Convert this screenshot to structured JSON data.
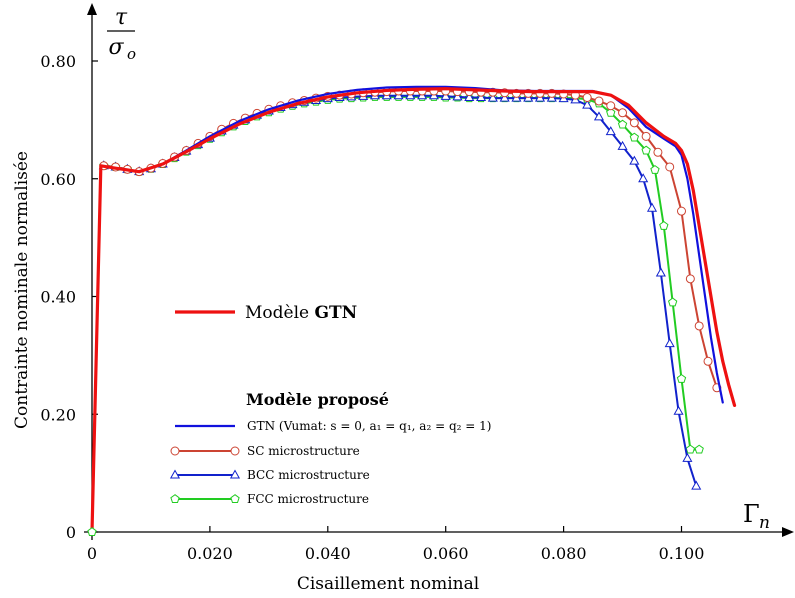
{
  "chart_data": {
    "type": "line",
    "xlabel": "Cisaillement nominal",
    "ylabel": "Contrainte nominale normalisée",
    "x_axis_symbol": "Γ",
    "x_axis_symbol_sub": "n",
    "y_axis_symbol_num": "τ",
    "y_axis_symbol_den": "σ",
    "y_axis_symbol_den_sub": "o",
    "xlim": [
      0,
      0.11
    ],
    "ylim": [
      0,
      0.88
    ],
    "xticks": [
      0,
      0.02,
      0.04,
      0.06,
      0.08,
      0.1
    ],
    "xtick_labels": [
      "0",
      "0.020",
      "0.040",
      "0.060",
      "0.080",
      "0.100"
    ],
    "yticks": [
      0,
      0.2,
      0.4,
      0.6,
      0.8
    ],
    "ytick_labels": [
      "0",
      "0.20",
      "0.40",
      "0.60",
      "0.80"
    ],
    "legend_gtn_prefix": "Modèle ",
    "legend_gtn_bold": "GTN",
    "legend_group_title": "Modèle proposé",
    "legend_vumat_label": "GTN (Vumat: s = 0,  a₁ = q₁,  a₂ = q₂ = 1)",
    "series": [
      {
        "name": "Modèle GTN",
        "color": "#ee1111",
        "width": 3.2,
        "marker": "none",
        "x": [
          0,
          0.0015,
          0.004,
          0.008,
          0.012,
          0.016,
          0.02,
          0.025,
          0.03,
          0.035,
          0.04,
          0.045,
          0.05,
          0.055,
          0.06,
          0.065,
          0.07,
          0.075,
          0.08,
          0.085,
          0.088,
          0.091,
          0.094,
          0.097,
          0.099,
          0.1,
          0.101,
          0.102,
          0.103,
          0.104,
          0.105,
          0.106,
          0.107,
          0.108,
          0.109
        ],
        "y": [
          0,
          0.622,
          0.618,
          0.612,
          0.625,
          0.646,
          0.668,
          0.693,
          0.713,
          0.728,
          0.739,
          0.746,
          0.75,
          0.752,
          0.753,
          0.751,
          0.749,
          0.748,
          0.748,
          0.748,
          0.742,
          0.725,
          0.695,
          0.672,
          0.66,
          0.648,
          0.625,
          0.58,
          0.52,
          0.46,
          0.4,
          0.34,
          0.29,
          0.25,
          0.215
        ]
      },
      {
        "name": "GTN (Vumat)",
        "color": "#1111dd",
        "width": 2.2,
        "marker": "none",
        "x": [
          0,
          0.0015,
          0.004,
          0.008,
          0.012,
          0.016,
          0.02,
          0.025,
          0.03,
          0.035,
          0.04,
          0.045,
          0.05,
          0.055,
          0.06,
          0.065,
          0.07,
          0.075,
          0.08,
          0.085,
          0.088,
          0.091,
          0.094,
          0.097,
          0.099,
          0.1,
          0.101,
          0.102,
          0.103,
          0.104,
          0.105,
          0.106,
          0.107
        ],
        "y": [
          0,
          0.622,
          0.618,
          0.612,
          0.625,
          0.648,
          0.672,
          0.698,
          0.718,
          0.733,
          0.744,
          0.751,
          0.755,
          0.756,
          0.756,
          0.754,
          0.75,
          0.749,
          0.749,
          0.749,
          0.742,
          0.72,
          0.688,
          0.668,
          0.655,
          0.64,
          0.6,
          0.54,
          0.47,
          0.4,
          0.33,
          0.27,
          0.22
        ]
      },
      {
        "name": "SC microstructure",
        "color": "#cc4433",
        "width": 2,
        "marker": "circle",
        "x": [
          0,
          0.0015,
          0.002,
          0.004,
          0.006,
          0.008,
          0.01,
          0.012,
          0.014,
          0.016,
          0.018,
          0.02,
          0.022,
          0.024,
          0.026,
          0.028,
          0.03,
          0.032,
          0.034,
          0.036,
          0.038,
          0.04,
          0.042,
          0.044,
          0.046,
          0.048,
          0.05,
          0.052,
          0.054,
          0.056,
          0.058,
          0.06,
          0.062,
          0.064,
          0.066,
          0.068,
          0.07,
          0.072,
          0.074,
          0.076,
          0.078,
          0.08,
          0.082,
          0.084,
          0.086,
          0.088,
          0.09,
          0.092,
          0.094,
          0.096,
          0.098,
          0.1,
          0.1015,
          0.103,
          0.1045,
          0.106
        ],
        "y": [
          0,
          0.622,
          0.622,
          0.62,
          0.616,
          0.612,
          0.618,
          0.626,
          0.637,
          0.648,
          0.66,
          0.672,
          0.684,
          0.694,
          0.703,
          0.711,
          0.718,
          0.724,
          0.729,
          0.733,
          0.737,
          0.74,
          0.742,
          0.744,
          0.746,
          0.747,
          0.748,
          0.749,
          0.749,
          0.749,
          0.749,
          0.749,
          0.748,
          0.748,
          0.747,
          0.747,
          0.746,
          0.745,
          0.745,
          0.745,
          0.745,
          0.744,
          0.742,
          0.738,
          0.732,
          0.724,
          0.712,
          0.695,
          0.672,
          0.645,
          0.62,
          0.545,
          0.43,
          0.35,
          0.29,
          0.245
        ]
      },
      {
        "name": "BCC microstructure",
        "color": "#1122cc",
        "width": 2,
        "marker": "triangle",
        "x": [
          0,
          0.0015,
          0.002,
          0.004,
          0.006,
          0.008,
          0.01,
          0.012,
          0.014,
          0.016,
          0.018,
          0.02,
          0.022,
          0.024,
          0.026,
          0.028,
          0.03,
          0.032,
          0.034,
          0.036,
          0.038,
          0.04,
          0.042,
          0.044,
          0.046,
          0.048,
          0.05,
          0.052,
          0.054,
          0.056,
          0.058,
          0.06,
          0.062,
          0.064,
          0.066,
          0.068,
          0.07,
          0.072,
          0.074,
          0.076,
          0.078,
          0.08,
          0.082,
          0.084,
          0.086,
          0.088,
          0.09,
          0.092,
          0.0935,
          0.095,
          0.0965,
          0.098,
          0.0995,
          0.101,
          0.1025
        ],
        "y": [
          0,
          0.622,
          0.622,
          0.62,
          0.616,
          0.612,
          0.617,
          0.625,
          0.636,
          0.647,
          0.658,
          0.669,
          0.681,
          0.691,
          0.7,
          0.708,
          0.715,
          0.721,
          0.726,
          0.73,
          0.733,
          0.736,
          0.738,
          0.739,
          0.74,
          0.741,
          0.741,
          0.741,
          0.741,
          0.741,
          0.741,
          0.74,
          0.739,
          0.738,
          0.738,
          0.737,
          0.737,
          0.737,
          0.737,
          0.737,
          0.737,
          0.736,
          0.734,
          0.725,
          0.705,
          0.68,
          0.655,
          0.63,
          0.6,
          0.55,
          0.44,
          0.32,
          0.205,
          0.125,
          0.078
        ]
      },
      {
        "name": "FCC microstructure",
        "color": "#22cc22",
        "width": 2,
        "marker": "pentagon",
        "x": [
          0,
          0.0015,
          0.002,
          0.004,
          0.006,
          0.008,
          0.01,
          0.012,
          0.014,
          0.016,
          0.018,
          0.02,
          0.022,
          0.024,
          0.026,
          0.028,
          0.03,
          0.032,
          0.034,
          0.036,
          0.038,
          0.04,
          0.042,
          0.044,
          0.046,
          0.048,
          0.05,
          0.052,
          0.054,
          0.056,
          0.058,
          0.06,
          0.062,
          0.064,
          0.066,
          0.068,
          0.07,
          0.072,
          0.074,
          0.076,
          0.078,
          0.08,
          0.082,
          0.084,
          0.086,
          0.088,
          0.09,
          0.092,
          0.094,
          0.0955,
          0.097,
          0.0985,
          0.1,
          0.1015,
          0.103
        ],
        "y": [
          0,
          0.622,
          0.622,
          0.62,
          0.616,
          0.612,
          0.617,
          0.625,
          0.635,
          0.646,
          0.657,
          0.668,
          0.679,
          0.689,
          0.698,
          0.706,
          0.713,
          0.719,
          0.724,
          0.728,
          0.731,
          0.734,
          0.736,
          0.737,
          0.738,
          0.739,
          0.739,
          0.739,
          0.739,
          0.739,
          0.739,
          0.738,
          0.738,
          0.737,
          0.737,
          0.737,
          0.737,
          0.737,
          0.737,
          0.737,
          0.737,
          0.737,
          0.737,
          0.735,
          0.728,
          0.712,
          0.692,
          0.67,
          0.648,
          0.615,
          0.52,
          0.39,
          0.26,
          0.14,
          0.14
        ]
      }
    ]
  }
}
